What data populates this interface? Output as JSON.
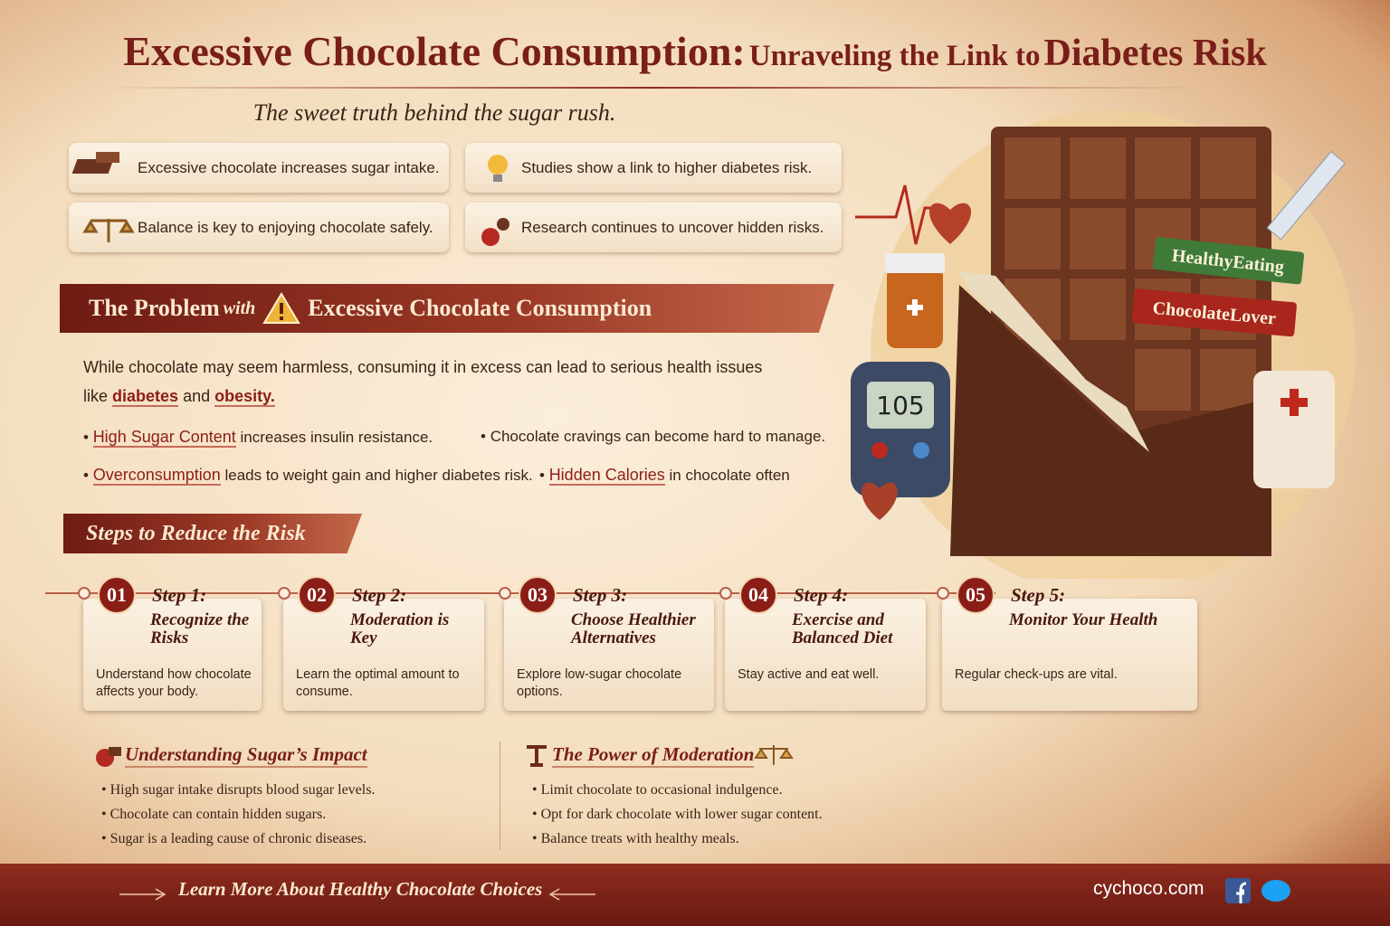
{
  "header": {
    "title_main": "Excessive Chocolate Consumption:",
    "title_middle": "Unraveling the Link to",
    "title_end": "Diabetes Risk",
    "subtitle": "The sweet truth behind the sugar rush."
  },
  "facts": [
    "Excessive chocolate increases sugar intake.",
    "Studies show a link to higher diabetes risk.",
    "Balance is key to enjoying chocolate safely.",
    "Research continues to uncover hidden risks."
  ],
  "problem": {
    "heading_start": "The Problem",
    "heading_with": "with",
    "heading_end": "Excessive Chocolate Consumption",
    "intro": "While chocolate may seem harmless, consuming it in excess can lead to serious health issues like",
    "term1": "diabetes",
    "joiner": "and",
    "term2": "obesity.",
    "bullets": [
      {
        "highlight": "High Sugar Content",
        "text": "increases insulin resistance."
      },
      {
        "text": "Chocolate cravings can become hard to manage."
      },
      {
        "highlight": "Overconsumption",
        "text": "leads to weight gain and higher diabetes risk."
      },
      {
        "highlight": "Hidden Calories",
        "text": "in chocolate often"
      }
    ]
  },
  "steps_heading": "Steps to Reduce the Risk",
  "steps": [
    {
      "number": "01",
      "label": "Step 1:",
      "title": "Recognize the Risks",
      "description": "Understand how chocolate affects your body."
    },
    {
      "number": "02",
      "label": "Step 2:",
      "title": "Moderation is Key",
      "description": "Learn the optimal amount to consume."
    },
    {
      "number": "03",
      "label": "Step 3:",
      "title": "Choose Healthier Alternatives",
      "description": "Explore low-sugar chocolate options."
    },
    {
      "number": "04",
      "label": "Step 4:",
      "title": "Exercise and Balanced Diet",
      "description": "Stay active and eat well."
    },
    {
      "number": "05",
      "label": "Step 5:",
      "title": "Monitor Your Health",
      "description": "Regular check-ups are vital."
    }
  ],
  "sections": [
    {
      "heading": "Understanding Sugar’s Impact",
      "bullets": [
        "High sugar intake disrupts blood sugar levels.",
        "Chocolate can contain hidden sugars.",
        "Sugar is a leading cause of chronic diseases."
      ]
    },
    {
      "heading": "The Power of Moderation",
      "bullets": [
        "Limit chocolate to occasional indulgence.",
        "Opt for dark chocolate with lower sugar content.",
        "Balance treats with healthy meals."
      ]
    }
  ],
  "illustration": {
    "meter_reading": "105",
    "tag1": "HealthyEating",
    "tag2": "ChocolateLover"
  },
  "footer": {
    "cta": "Learn More About Healthy Chocolate Choices",
    "site": "cychoco.com"
  }
}
